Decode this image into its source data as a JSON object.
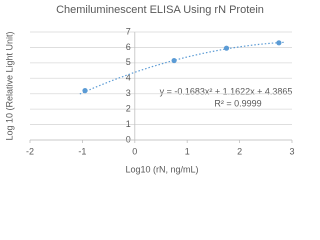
{
  "chart_data": {
    "type": "scatter",
    "title": "Chemiluminescent ELISA Using rN Protein",
    "x_label": "Log10 (rN, ng/mL)",
    "y_label": "Log 10 (Relative Light Unit)",
    "x": [
      -0.95,
      0.75,
      1.75,
      2.75
    ],
    "y": [
      3.2,
      5.15,
      5.95,
      6.3
    ],
    "color": "#5b9bd5",
    "xlim": [
      -2,
      3
    ],
    "xticks": [
      -2,
      -1,
      0,
      1,
      2,
      3
    ],
    "ylim": [
      0,
      7
    ],
    "yticks": [
      0,
      1,
      2,
      3,
      4,
      5,
      6,
      7
    ],
    "grid": true,
    "trendline": {
      "coefficients": [
        -0.1683,
        1.1622,
        4.3865
      ],
      "equation": "y = -0.1683x² + 1.1622x + 4.3865",
      "r_squared": "R² = 0.9999"
    }
  }
}
